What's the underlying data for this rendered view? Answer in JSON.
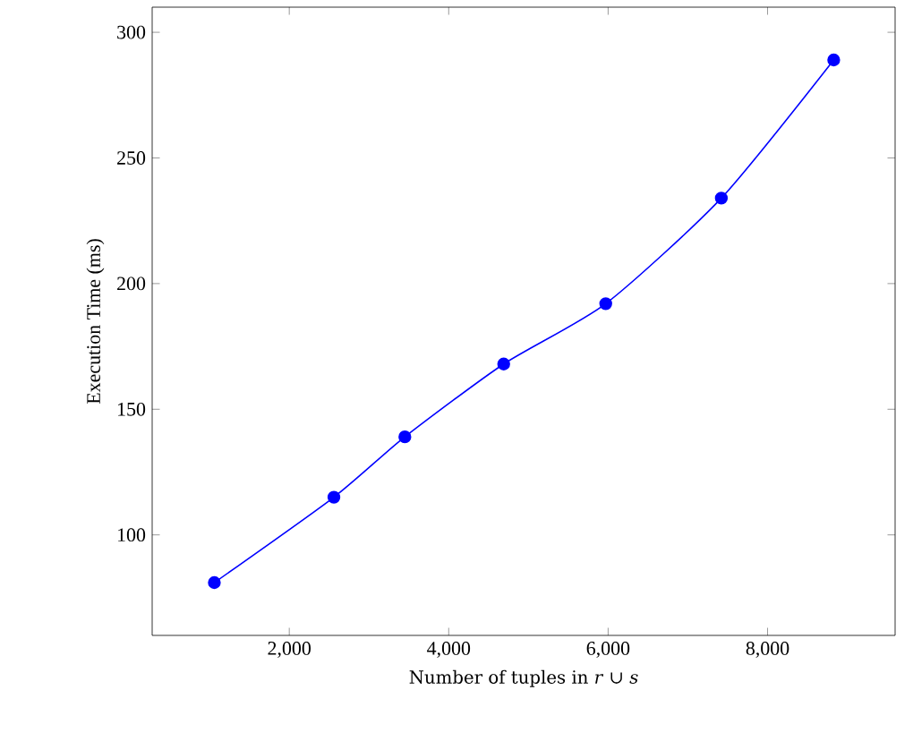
{
  "chart_data": {
    "type": "line",
    "xlabel": "Number of tuples in *r* ∪ *s*",
    "ylabel": "Execution Time (ms)",
    "x": [
      1060,
      2560,
      3450,
      4690,
      5970,
      7420,
      8830
    ],
    "series": [
      {
        "color": "#0000ff",
        "values": [
          81,
          115,
          139,
          168,
          192,
          234,
          289
        ]
      }
    ],
    "xlim": [
      280,
      9600
    ],
    "ylim": [
      60,
      310
    ],
    "xticks": [
      {
        "value": 2000,
        "label": "2,000"
      },
      {
        "value": 4000,
        "label": "4,000"
      },
      {
        "value": 6000,
        "label": "6,000"
      },
      {
        "value": 8000,
        "label": "8,000"
      }
    ],
    "yticks": [
      100,
      150,
      200,
      250,
      300
    ],
    "marker": "circle",
    "line_style": "solid"
  }
}
